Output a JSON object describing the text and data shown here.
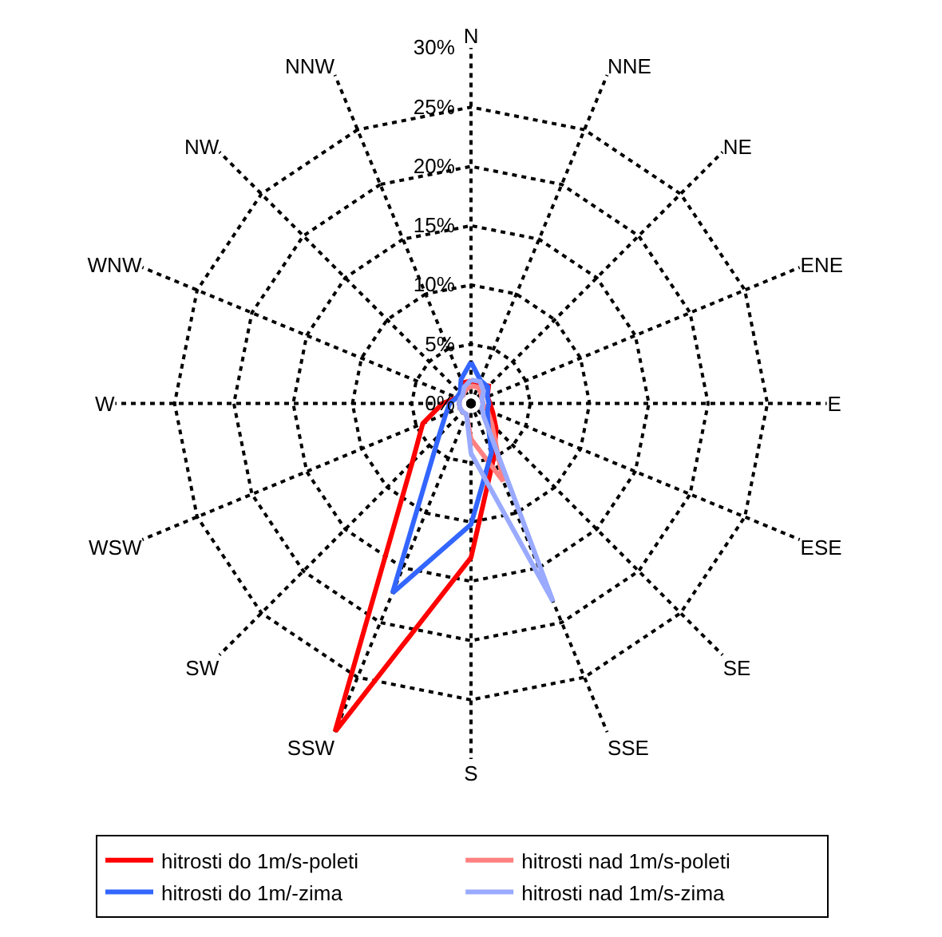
{
  "chart_data": {
    "type": "radar",
    "categories": [
      "N",
      "NNE",
      "NE",
      "ENE",
      "E",
      "ESE",
      "SE",
      "SSE",
      "S",
      "SSW",
      "SW",
      "WSW",
      "W",
      "WNW",
      "NW",
      "NNW"
    ],
    "series": [
      {
        "name": "hitrosti do 1m/s-poleti",
        "color": "#ff0000",
        "values": [
          1.9,
          1.8,
          2.1,
          1.5,
          1.6,
          2,
          3,
          5,
          13,
          30,
          7,
          4.4,
          2.4,
          1.3,
          1,
          1.9
        ]
      },
      {
        "name": "hitrosti nad 1m/s-poleti",
        "color": "#ff8080",
        "values": [
          1.5,
          1.5,
          1.2,
          1,
          1,
          1.5,
          2.5,
          7.1,
          3,
          1,
          1,
          1,
          1,
          1,
          1,
          1.2
        ]
      },
      {
        "name": "hitrosti do 1m/-zima",
        "color": "#3366ff",
        "values": [
          3.5,
          2.1,
          2,
          1.5,
          1.5,
          1.5,
          2,
          4.5,
          10.2,
          17.3,
          3.8,
          2.3,
          1.8,
          1.3,
          1.3,
          2.2
        ]
      },
      {
        "name": "hitrosti nad 1m/s-zima",
        "color": "#99aaff",
        "values": [
          2,
          2,
          1.5,
          1,
          1,
          1,
          1.5,
          18.1,
          4.2,
          1,
          1,
          1,
          1,
          1,
          1,
          1.5
        ]
      }
    ],
    "ylim": [
      0,
      30
    ],
    "yticks": [
      {
        "value": 0,
        "label": "0%"
      },
      {
        "value": 5,
        "label": "5%"
      },
      {
        "value": 10,
        "label": "10%"
      },
      {
        "value": 15,
        "label": "15%"
      },
      {
        "value": 20,
        "label": "20%"
      },
      {
        "value": 25,
        "label": "25%"
      },
      {
        "value": 30,
        "label": "30%"
      }
    ],
    "grid": true,
    "legend": "bottom",
    "marker": "none",
    "line_style": "solid"
  }
}
